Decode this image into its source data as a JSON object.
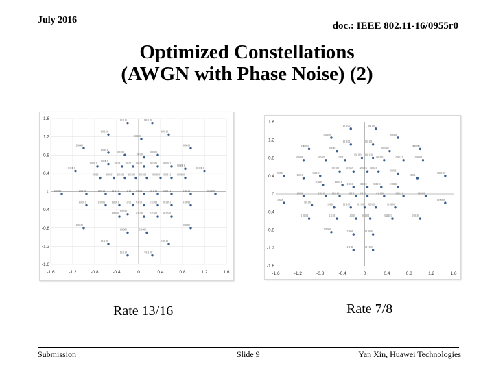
{
  "header": {
    "date": "July 2016",
    "doc_id": "doc.: IEEE 802.11-16/0955r0"
  },
  "title": {
    "line1": "Optimized Constellations",
    "line2": "(AWGN with Phase Noise) (2)"
  },
  "footer": {
    "left": "Submission",
    "center": "Slide 9",
    "right": "Yan Xin, Huawei Technologies"
  },
  "colors": {
    "point": "#3a5f8f",
    "grid": "#dcdcdc",
    "axis": "#a6a6a6"
  },
  "chart_data": [
    {
      "type": "scatter",
      "caption": "Rate 13/16",
      "xlim": [
        -1.6,
        1.6
      ],
      "ylim": [
        -1.6,
        1.6
      ],
      "x_ticks": [
        -1.6,
        -1.2,
        -0.8,
        -0.4,
        0,
        0.4,
        0.8,
        1.2,
        1.6
      ],
      "y_ticks": [
        1.6,
        1.2,
        0.8,
        0.4,
        0,
        -0.4,
        -0.8,
        -1.2,
        -1.6
      ],
      "grid": true,
      "points": [
        {
          "x": -0.2,
          "y": 1.5,
          "label": "101110"
        },
        {
          "x": 0.25,
          "y": 1.5,
          "label": "001110"
        },
        {
          "x": -0.55,
          "y": 1.25,
          "label": "100110"
        },
        {
          "x": 0.55,
          "y": 1.25,
          "label": "000110"
        },
        {
          "x": 0.05,
          "y": 1.15,
          "label": "100100"
        },
        {
          "x": -1.0,
          "y": 0.95,
          "label": "110000"
        },
        {
          "x": -0.55,
          "y": 0.85,
          "label": "100101"
        },
        {
          "x": -0.25,
          "y": 0.8,
          "label": "101010"
        },
        {
          "x": 0.1,
          "y": 0.75,
          "label": "101000"
        },
        {
          "x": 0.35,
          "y": 0.8,
          "label": "000101"
        },
        {
          "x": 0.95,
          "y": 0.95,
          "label": "000010"
        },
        {
          "x": -1.15,
          "y": 0.45,
          "label": "110001"
        },
        {
          "x": -0.75,
          "y": 0.55,
          "label": "100011"
        },
        {
          "x": -0.55,
          "y": 0.6,
          "label": "100001"
        },
        {
          "x": -0.3,
          "y": 0.55,
          "label": "101011"
        },
        {
          "x": -0.1,
          "y": 0.55,
          "label": "101001"
        },
        {
          "x": 0.1,
          "y": 0.55,
          "label": "001001"
        },
        {
          "x": 0.35,
          "y": 0.55,
          "label": "001011"
        },
        {
          "x": 0.6,
          "y": 0.55,
          "label": "000011"
        },
        {
          "x": 0.85,
          "y": 0.5,
          "label": "000001"
        },
        {
          "x": 1.2,
          "y": 0.45,
          "label": "010001"
        },
        {
          "x": -0.7,
          "y": 0.3,
          "label": "100111"
        },
        {
          "x": -0.45,
          "y": 0.3,
          "label": "100101"
        },
        {
          "x": -0.25,
          "y": 0.3,
          "label": "101101"
        },
        {
          "x": -0.05,
          "y": 0.3,
          "label": "101100"
        },
        {
          "x": 0.15,
          "y": 0.3,
          "label": "001101"
        },
        {
          "x": 0.4,
          "y": 0.3,
          "label": "001100"
        },
        {
          "x": 0.6,
          "y": 0.3,
          "label": "000111"
        },
        {
          "x": 0.85,
          "y": 0.3,
          "label": "000100"
        },
        {
          "x": -1.4,
          "y": -0.05,
          "label": "110100"
        },
        {
          "x": -0.95,
          "y": -0.05,
          "label": "110110"
        },
        {
          "x": -0.6,
          "y": -0.05,
          "label": "110111"
        },
        {
          "x": -0.35,
          "y": -0.05,
          "label": "111111"
        },
        {
          "x": -0.1,
          "y": -0.05,
          "label": "111101"
        },
        {
          "x": 0.1,
          "y": -0.05,
          "label": "011101"
        },
        {
          "x": 0.35,
          "y": -0.05,
          "label": "011111"
        },
        {
          "x": 0.6,
          "y": -0.05,
          "label": "010111"
        },
        {
          "x": 0.95,
          "y": -0.05,
          "label": "010110"
        },
        {
          "x": 1.4,
          "y": -0.05,
          "label": "010100"
        },
        {
          "x": -0.95,
          "y": -0.3,
          "label": "110011"
        },
        {
          "x": -0.6,
          "y": -0.3,
          "label": "110101"
        },
        {
          "x": -0.35,
          "y": -0.3,
          "label": "111011"
        },
        {
          "x": -0.1,
          "y": -0.3,
          "label": "111001"
        },
        {
          "x": 0.1,
          "y": -0.3,
          "label": "011001"
        },
        {
          "x": 0.35,
          "y": -0.3,
          "label": "011011"
        },
        {
          "x": 0.6,
          "y": -0.3,
          "label": "010101"
        },
        {
          "x": 0.95,
          "y": -0.3,
          "label": "010011"
        },
        {
          "x": -0.35,
          "y": -0.55,
          "label": "111100"
        },
        {
          "x": -0.2,
          "y": -0.5,
          "label": "111010"
        },
        {
          "x": 0.1,
          "y": -0.55,
          "label": "011010"
        },
        {
          "x": 0.35,
          "y": -0.55,
          "label": "011100"
        },
        {
          "x": 0.6,
          "y": -0.55,
          "label": "010010"
        },
        {
          "x": -1.0,
          "y": -0.8,
          "label": "110010"
        },
        {
          "x": 0.95,
          "y": -0.8,
          "label": "010000"
        },
        {
          "x": -0.2,
          "y": -0.9,
          "label": "111000"
        },
        {
          "x": 0.15,
          "y": -0.9,
          "label": "011000"
        },
        {
          "x": -0.55,
          "y": -1.15,
          "label": "101110"
        },
        {
          "x": 0.55,
          "y": -1.15,
          "label": "010110"
        },
        {
          "x": -0.2,
          "y": -1.4,
          "label": "111110"
        },
        {
          "x": 0.25,
          "y": -1.4,
          "label": "011110"
        }
      ]
    },
    {
      "type": "scatter",
      "caption": "Rate 7/8",
      "xlim": [
        -1.6,
        1.6
      ],
      "ylim": [
        -1.6,
        1.6
      ],
      "x_ticks": [
        -1.6,
        -1.2,
        -0.8,
        -0.4,
        0,
        0.4,
        0.8,
        1.2,
        1.6
      ],
      "y_ticks": [
        1.6,
        1.2,
        0.8,
        0.4,
        0,
        -0.4,
        -0.8,
        -1.2,
        -1.6
      ],
      "grid": false,
      "points": [
        {
          "x": -0.25,
          "y": 1.45,
          "label": "101100"
        },
        {
          "x": 0.2,
          "y": 1.45,
          "label": "001100"
        },
        {
          "x": -0.6,
          "y": 1.25,
          "label": "100100"
        },
        {
          "x": 0.6,
          "y": 1.25,
          "label": "000100"
        },
        {
          "x": -0.25,
          "y": 1.1,
          "label": "101101"
        },
        {
          "x": 0.15,
          "y": 1.1,
          "label": "001101"
        },
        {
          "x": -0.5,
          "y": 0.95,
          "label": "101001"
        },
        {
          "x": 0.45,
          "y": 0.95,
          "label": "000101"
        },
        {
          "x": -1.0,
          "y": 1.0,
          "label": "100000"
        },
        {
          "x": 1.0,
          "y": 1.0,
          "label": "000000"
        },
        {
          "x": -1.1,
          "y": 0.75,
          "label": "100001"
        },
        {
          "x": -0.7,
          "y": 0.75,
          "label": "100101"
        },
        {
          "x": -0.35,
          "y": 0.75,
          "label": "101111"
        },
        {
          "x": -0.05,
          "y": 0.8,
          "label": "101110"
        },
        {
          "x": 0.15,
          "y": 0.8,
          "label": "001110"
        },
        {
          "x": 0.35,
          "y": 0.75,
          "label": "001111"
        },
        {
          "x": 0.7,
          "y": 0.75,
          "label": "000111"
        },
        {
          "x": 1.05,
          "y": 0.75,
          "label": "000001"
        },
        {
          "x": -1.45,
          "y": 0.4,
          "label": "100010"
        },
        {
          "x": -1.1,
          "y": 0.35,
          "label": "110010"
        },
        {
          "x": -0.8,
          "y": 0.4,
          "label": "100011"
        },
        {
          "x": -0.45,
          "y": 0.5,
          "label": "101011"
        },
        {
          "x": -0.2,
          "y": 0.5,
          "label": "101010"
        },
        {
          "x": 0.05,
          "y": 0.5,
          "label": "001010"
        },
        {
          "x": 0.25,
          "y": 0.5,
          "label": "001011"
        },
        {
          "x": 0.6,
          "y": 0.45,
          "label": "000011"
        },
        {
          "x": 0.95,
          "y": 0.35,
          "label": "010011"
        },
        {
          "x": 1.45,
          "y": 0.4,
          "label": "000010"
        },
        {
          "x": -0.75,
          "y": 0.2,
          "label": "110011"
        },
        {
          "x": -0.4,
          "y": 0.2,
          "label": "111011"
        },
        {
          "x": -0.2,
          "y": 0.15,
          "label": "111010"
        },
        {
          "x": 0.05,
          "y": 0.15,
          "label": "011010"
        },
        {
          "x": 0.3,
          "y": 0.15,
          "label": "011011"
        },
        {
          "x": 0.6,
          "y": 0.15,
          "label": "010010"
        },
        {
          "x": -1.1,
          "y": -0.05,
          "label": "110001"
        },
        {
          "x": -0.7,
          "y": -0.05,
          "label": "110111"
        },
        {
          "x": -0.45,
          "y": -0.05,
          "label": "111110"
        },
        {
          "x": -0.15,
          "y": -0.05,
          "label": "111111"
        },
        {
          "x": 0.05,
          "y": -0.05,
          "label": "011111"
        },
        {
          "x": 0.35,
          "y": -0.05,
          "label": "011110"
        },
        {
          "x": 0.7,
          "y": -0.05,
          "label": "010111"
        },
        {
          "x": 1.1,
          "y": -0.05,
          "label": "010001"
        },
        {
          "x": -1.45,
          "y": -0.2,
          "label": "110000"
        },
        {
          "x": -0.95,
          "y": -0.25,
          "label": "110100"
        },
        {
          "x": -0.55,
          "y": -0.3,
          "label": "110110"
        },
        {
          "x": -0.25,
          "y": -0.3,
          "label": "111100"
        },
        {
          "x": 0.0,
          "y": -0.3,
          "label": "011100"
        },
        {
          "x": 0.2,
          "y": -0.3,
          "label": "010110"
        },
        {
          "x": 0.55,
          "y": -0.3,
          "label": "010100"
        },
        {
          "x": 1.45,
          "y": -0.2,
          "label": "010000"
        },
        {
          "x": -1.0,
          "y": -0.55,
          "label": "110101"
        },
        {
          "x": -0.5,
          "y": -0.55,
          "label": "111101"
        },
        {
          "x": -0.15,
          "y": -0.55,
          "label": "111001"
        },
        {
          "x": 0.1,
          "y": -0.55,
          "label": "011001"
        },
        {
          "x": 0.5,
          "y": -0.55,
          "label": "011101"
        },
        {
          "x": 1.0,
          "y": -0.55,
          "label": "010101"
        },
        {
          "x": -0.6,
          "y": -0.85,
          "label": "111000"
        },
        {
          "x": -0.2,
          "y": -0.9,
          "label": "111001"
        },
        {
          "x": 0.15,
          "y": -0.9,
          "label": "011000"
        },
        {
          "x": -0.2,
          "y": -1.25,
          "label": "111100"
        },
        {
          "x": 0.15,
          "y": -1.25,
          "label": "011100"
        }
      ]
    }
  ]
}
